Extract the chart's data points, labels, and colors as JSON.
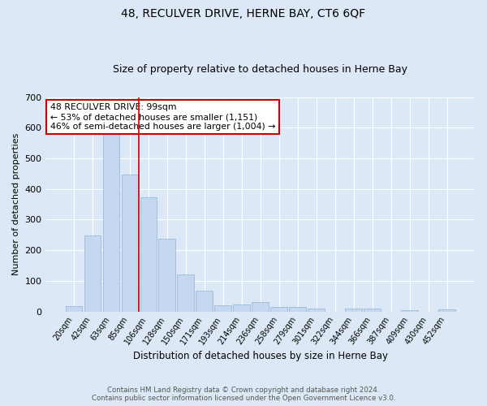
{
  "title": "48, RECULVER DRIVE, HERNE BAY, CT6 6QF",
  "subtitle": "Size of property relative to detached houses in Herne Bay",
  "xlabel": "Distribution of detached houses by size in Herne Bay",
  "ylabel": "Number of detached properties",
  "footer_line1": "Contains HM Land Registry data © Crown copyright and database right 2024.",
  "footer_line2": "Contains public sector information licensed under the Open Government Licence v3.0.",
  "bar_labels": [
    "20sqm",
    "42sqm",
    "63sqm",
    "85sqm",
    "106sqm",
    "128sqm",
    "150sqm",
    "171sqm",
    "193sqm",
    "214sqm",
    "236sqm",
    "258sqm",
    "279sqm",
    "301sqm",
    "322sqm",
    "344sqm",
    "366sqm",
    "387sqm",
    "409sqm",
    "430sqm",
    "452sqm"
  ],
  "bar_values": [
    18,
    248,
    585,
    448,
    372,
    237,
    120,
    67,
    20,
    22,
    30,
    14,
    14,
    10,
    0,
    9,
    9,
    0,
    5,
    0,
    7
  ],
  "bar_color": "#c5d8f0",
  "bar_edge_color": "#8ab4d8",
  "annotation_line1": "48 RECULVER DRIVE: 99sqm",
  "annotation_line2": "← 53% of detached houses are smaller (1,151)",
  "annotation_line3": "46% of semi-detached houses are larger (1,004) →",
  "annotation_box_color": "#cc0000",
  "vline_color": "#cc0000",
  "ylim": [
    0,
    700
  ],
  "yticks": [
    0,
    100,
    200,
    300,
    400,
    500,
    600,
    700
  ],
  "bg_color": "#dce8f5",
  "plot_bg_color": "#dce8f5",
  "grid_color": "#ffffff"
}
